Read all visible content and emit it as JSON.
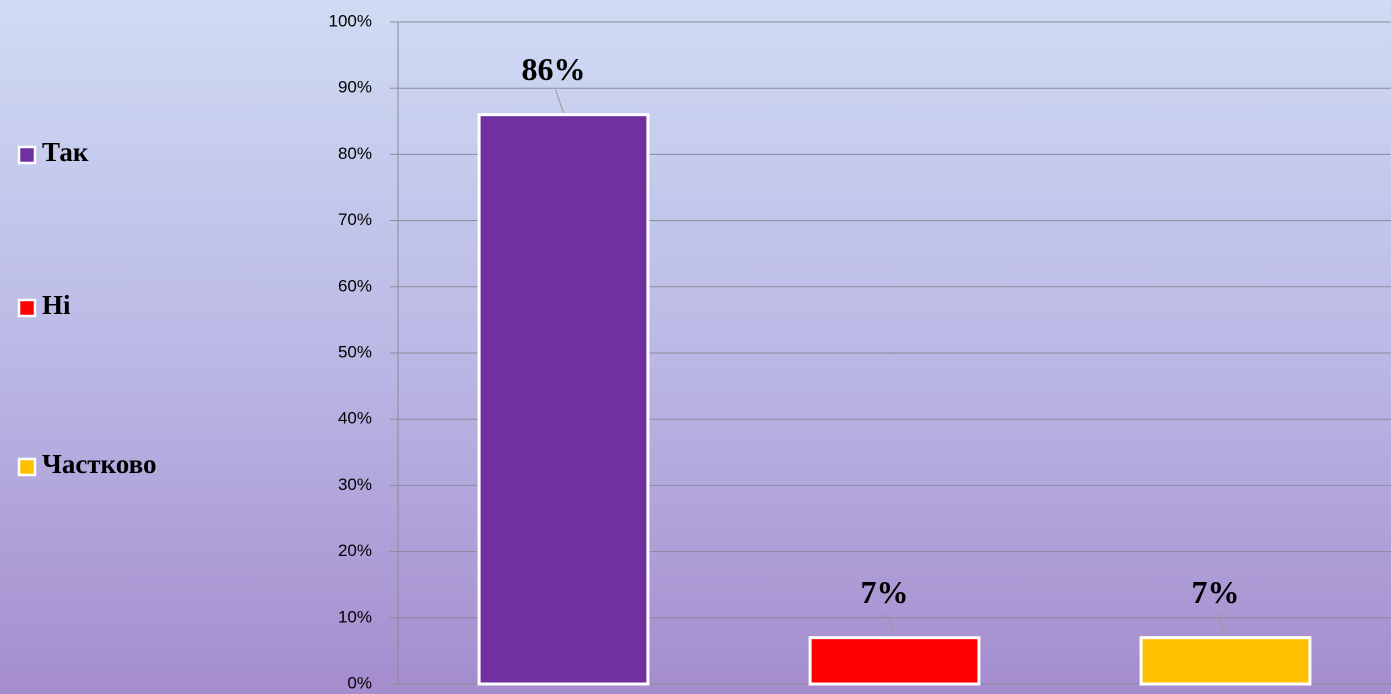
{
  "chart_data": {
    "type": "bar",
    "series": [
      {
        "name": "Так",
        "color": "#7030a0",
        "values": [
          86
        ],
        "value_labels": [
          "86%"
        ]
      },
      {
        "name": "Ні",
        "color": "#ff0000",
        "values": [
          7
        ],
        "value_labels": [
          "7%"
        ]
      },
      {
        "name": "Частково",
        "color": "#ffc000",
        "values": [
          7
        ],
        "value_labels": [
          "7%"
        ]
      }
    ],
    "ylim": [
      0,
      100
    ],
    "yticks": [
      {
        "value": 0,
        "label": "0%"
      },
      {
        "value": 10,
        "label": "10%"
      },
      {
        "value": 20,
        "label": "20%"
      },
      {
        "value": 30,
        "label": "30%"
      },
      {
        "value": 40,
        "label": "40%"
      },
      {
        "value": 50,
        "label": "50%"
      },
      {
        "value": 60,
        "label": "60%"
      },
      {
        "value": 70,
        "label": "70%"
      },
      {
        "value": 80,
        "label": "80%"
      },
      {
        "value": 90,
        "label": "90%"
      },
      {
        "value": 100,
        "label": "100%"
      }
    ],
    "grid": true,
    "legend": "left"
  }
}
